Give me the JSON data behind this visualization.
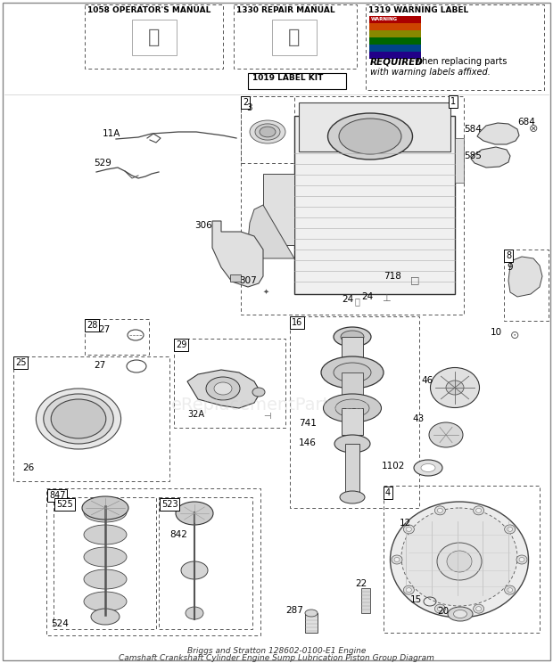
{
  "bg_color": "#ffffff",
  "watermark": "eReplacementParts.com",
  "title_line1": "Briggs and Stratton 128602-0100-E1 Engine",
  "title_line2": "Camshaft Crankshaft Cylinder Engine Sump Lubrication Piston Group Diagram"
}
